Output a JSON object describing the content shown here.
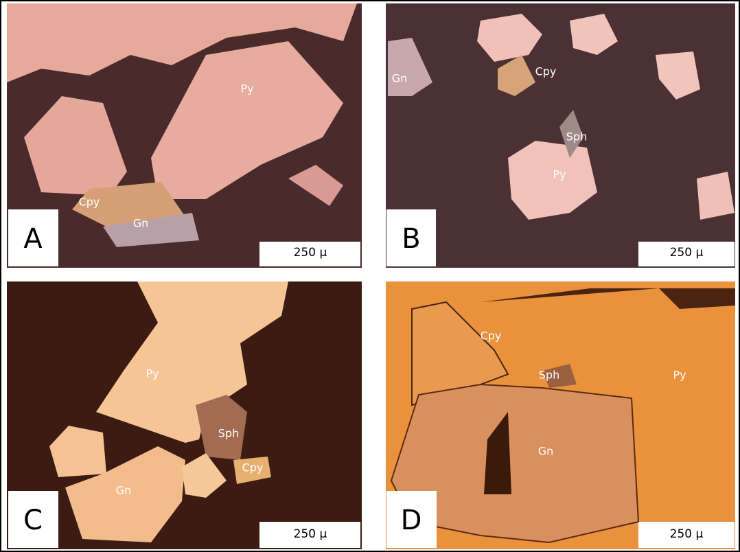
{
  "panels": [
    {
      "letter": "A",
      "scale_bar": "250 μ",
      "labels": [
        "Py",
        "Cpy",
        "Gn"
      ]
    },
    {
      "letter": "B",
      "scale_bar": "250 μ",
      "labels": [
        "Gn",
        "Cpy",
        "Sph",
        "Py"
      ]
    },
    {
      "letter": "C",
      "scale_bar": "250 μ",
      "labels": [
        "Py",
        "Sph",
        "Cpy",
        "Gn"
      ]
    },
    {
      "letter": "D",
      "scale_bar": "250 μ",
      "labels": [
        "Cpy",
        "Sph",
        "Py",
        "Gn"
      ]
    }
  ]
}
